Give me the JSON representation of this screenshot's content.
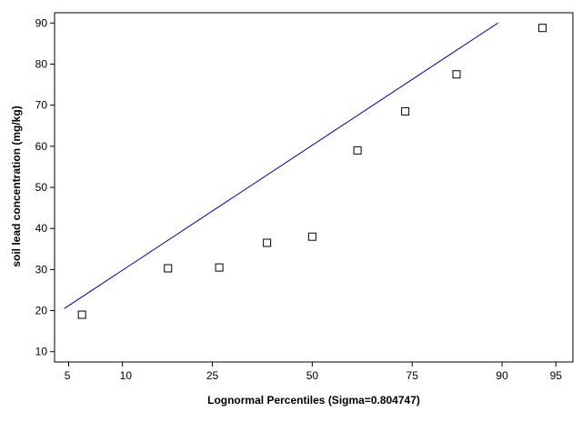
{
  "chart_data": {
    "type": "scatter",
    "title": "",
    "xlabel": "Lognormal Percentiles (Sigma=0.804747)",
    "ylabel": "soil lead concentration (mg/kg)",
    "xlim_z": [
      -1.74,
      1.76
    ],
    "ylim": [
      7.5,
      92.5
    ],
    "x_ticks": [
      {
        "label": "5",
        "value": 5
      },
      {
        "label": "10",
        "value": 10
      },
      {
        "label": "25",
        "value": 25
      },
      {
        "label": "50",
        "value": 50
      },
      {
        "label": "75",
        "value": 75
      },
      {
        "label": "90",
        "value": 90
      },
      {
        "label": "95",
        "value": 95
      }
    ],
    "y_ticks": [
      10,
      20,
      30,
      40,
      50,
      60,
      70,
      80,
      90
    ],
    "grid": false,
    "points": [
      {
        "x": 6.0,
        "y": 19.0
      },
      {
        "x": 16.5,
        "y": 30.3
      },
      {
        "x": 26.5,
        "y": 30.5
      },
      {
        "x": 38.0,
        "y": 36.5
      },
      {
        "x": 50.0,
        "y": 38.0
      },
      {
        "x": 62.0,
        "y": 59.0
      },
      {
        "x": 73.5,
        "y": 68.5
      },
      {
        "x": 83.5,
        "y": 77.5
      },
      {
        "x": 94.0,
        "y": 88.8
      }
    ],
    "fit_line": [
      {
        "x": 4.7,
        "y": 20.5
      },
      {
        "x": 89.5,
        "y": 90.0
      }
    ]
  }
}
